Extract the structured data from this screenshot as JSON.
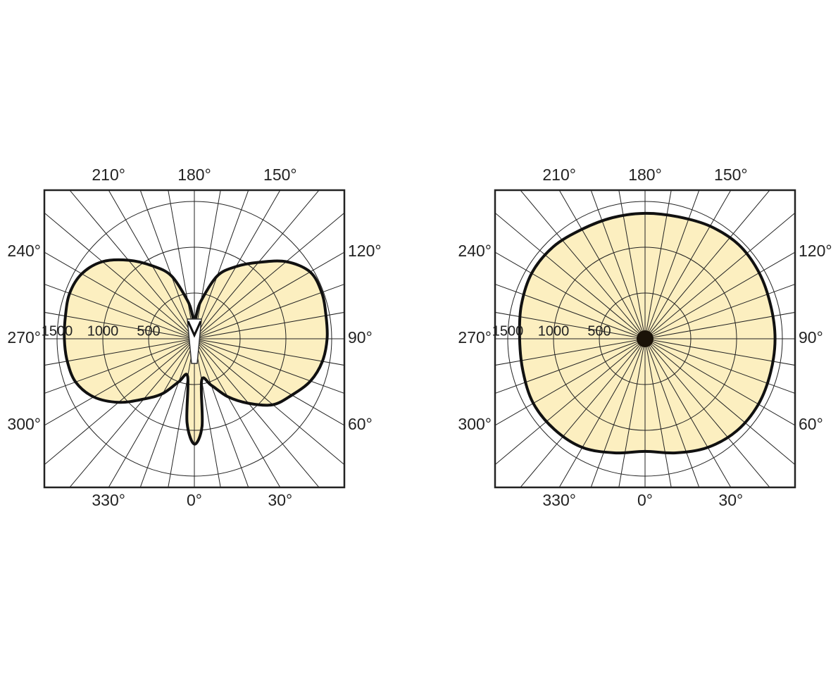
{
  "chart_data": [
    {
      "type": "polar",
      "color": "#fcefc0",
      "outline": "#111111",
      "theta": [
        0,
        5,
        10,
        20,
        30,
        40,
        50,
        60,
        70,
        80,
        90,
        100,
        110,
        120,
        130,
        140,
        150,
        160,
        170,
        175,
        180,
        185,
        190,
        200,
        210,
        220,
        230,
        240,
        250,
        260,
        270,
        280,
        290,
        300,
        310,
        320,
        330,
        340,
        350,
        355
      ],
      "values": [
        1150,
        960,
        460,
        540,
        730,
        920,
        1120,
        1230,
        1350,
        1420,
        1450,
        1460,
        1480,
        1460,
        1310,
        1090,
        910,
        730,
        420,
        270,
        150,
        270,
        420,
        730,
        920,
        1120,
        1310,
        1420,
        1450,
        1430,
        1420,
        1410,
        1380,
        1270,
        1080,
        860,
        690,
        500,
        420,
        920
      ],
      "rlim": [
        0,
        1500
      ],
      "rticks": [
        500,
        1000,
        1500
      ],
      "angle_grid_step": 10,
      "angle_ticks": [
        {
          "value": 0,
          "label": "0°"
        },
        {
          "value": 30,
          "label": "30°"
        },
        {
          "value": 60,
          "label": "60°"
        },
        {
          "value": 90,
          "label": "90°"
        },
        {
          "value": 120,
          "label": "120°"
        },
        {
          "value": 150,
          "label": "150°"
        },
        {
          "value": 180,
          "label": "180°"
        },
        {
          "value": 210,
          "label": "210°"
        },
        {
          "value": 240,
          "label": "240°"
        },
        {
          "value": 270,
          "label": "270°"
        },
        {
          "value": 300,
          "label": "300°"
        },
        {
          "value": 330,
          "label": "330°"
        }
      ]
    },
    {
      "type": "polar",
      "color": "#fcefc0",
      "outline": "#111111",
      "theta": [
        0,
        15,
        30,
        45,
        60,
        75,
        90,
        105,
        120,
        135,
        150,
        165,
        180,
        195,
        210,
        225,
        240,
        255,
        270,
        285,
        300,
        315,
        330,
        345
      ],
      "values": [
        1230,
        1290,
        1370,
        1420,
        1430,
        1420,
        1420,
        1420,
        1440,
        1450,
        1420,
        1380,
        1370,
        1370,
        1380,
        1420,
        1430,
        1400,
        1370,
        1380,
        1410,
        1400,
        1370,
        1290
      ],
      "rlim": [
        0,
        1500
      ],
      "rticks": [
        500,
        1000,
        1500
      ],
      "angle_grid_step": 10,
      "angle_ticks": [
        {
          "value": 0,
          "label": "0°"
        },
        {
          "value": 30,
          "label": "30°"
        },
        {
          "value": 60,
          "label": "60°"
        },
        {
          "value": 90,
          "label": "90°"
        },
        {
          "value": 120,
          "label": "120°"
        },
        {
          "value": 150,
          "label": "150°"
        },
        {
          "value": 180,
          "label": "180°"
        },
        {
          "value": 210,
          "label": "210°"
        },
        {
          "value": 240,
          "label": "240°"
        },
        {
          "value": 270,
          "label": "270°"
        },
        {
          "value": 300,
          "label": "300°"
        },
        {
          "value": 330,
          "label": "330°"
        }
      ]
    }
  ]
}
